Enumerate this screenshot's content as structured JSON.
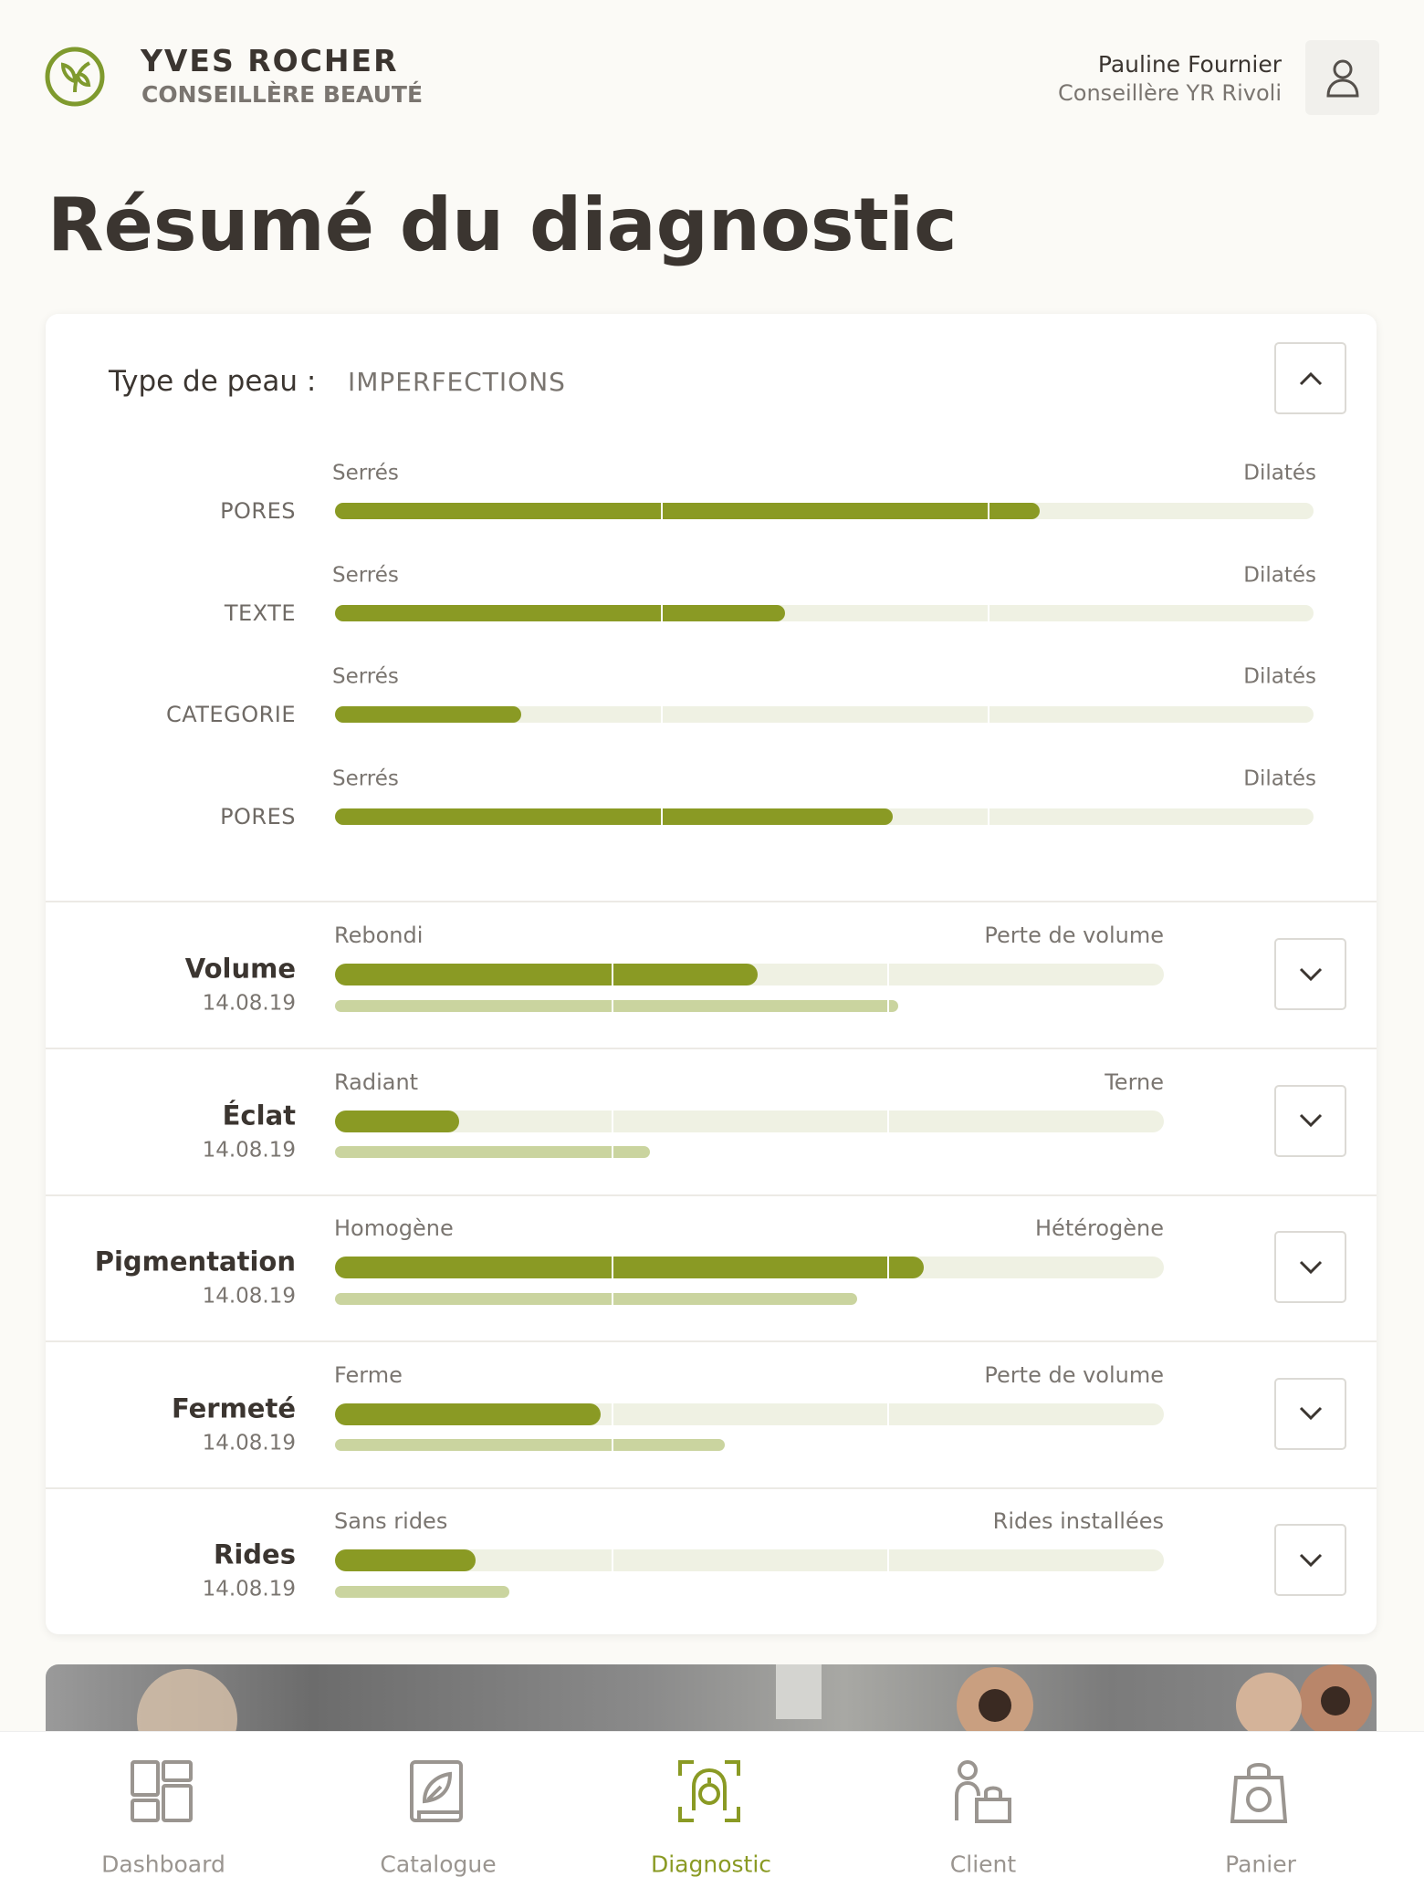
{
  "header": {
    "brand": "YVES ROCHER",
    "subtitle": "CONSEILLÈRE BEAUTÉ",
    "user_name": "Pauline Fournier",
    "user_role": "Conseillère YR Rivoli"
  },
  "title": "Résumé du diagnostic",
  "scale": [
    0,
    100
  ],
  "skin_type": {
    "label": "Type de peau :",
    "value": "IMPERFECTIONS",
    "rows": [
      {
        "name": "PORES",
        "min_label": "Serrés",
        "max_label": "Dilatés",
        "value": 72
      },
      {
        "name": "TEXTE",
        "min_label": "Serrés",
        "max_label": "Dilatés",
        "value": 46
      },
      {
        "name": "CATEGORIE",
        "min_label": "Serrés",
        "max_label": "Dilatés",
        "value": 19
      },
      {
        "name": "PORES",
        "min_label": "Serrés",
        "max_label": "Dilatés",
        "value": 57
      }
    ]
  },
  "criteria": [
    {
      "name": "Volume",
      "date": "14.08.19",
      "min_label": "Rebondi",
      "max_label": "Perte de volume",
      "value": 51,
      "previous": 68
    },
    {
      "name": "Éclat",
      "date": "14.08.19",
      "min_label": "Radiant",
      "max_label": "Terne",
      "value": 15,
      "previous": 38
    },
    {
      "name": "Pigmentation",
      "date": "14.08.19",
      "min_label": "Homogène",
      "max_label": "Hétérogène",
      "value": 71,
      "previous": 63
    },
    {
      "name": "Fermeté",
      "date": "14.08.19",
      "min_label": "Ferme",
      "max_label": "Perte de volume",
      "value": 32,
      "previous": 47
    },
    {
      "name": "Rides",
      "date": "14.08.19",
      "min_label": "Sans rides",
      "max_label": "Rides installées",
      "value": 17,
      "previous": 21
    }
  ],
  "nav": {
    "items": [
      {
        "label": "Dashboard"
      },
      {
        "label": "Catalogue"
      },
      {
        "label": "Diagnostic"
      },
      {
        "label": "Client"
      },
      {
        "label": "Panier"
      }
    ],
    "active_index": 2
  }
}
